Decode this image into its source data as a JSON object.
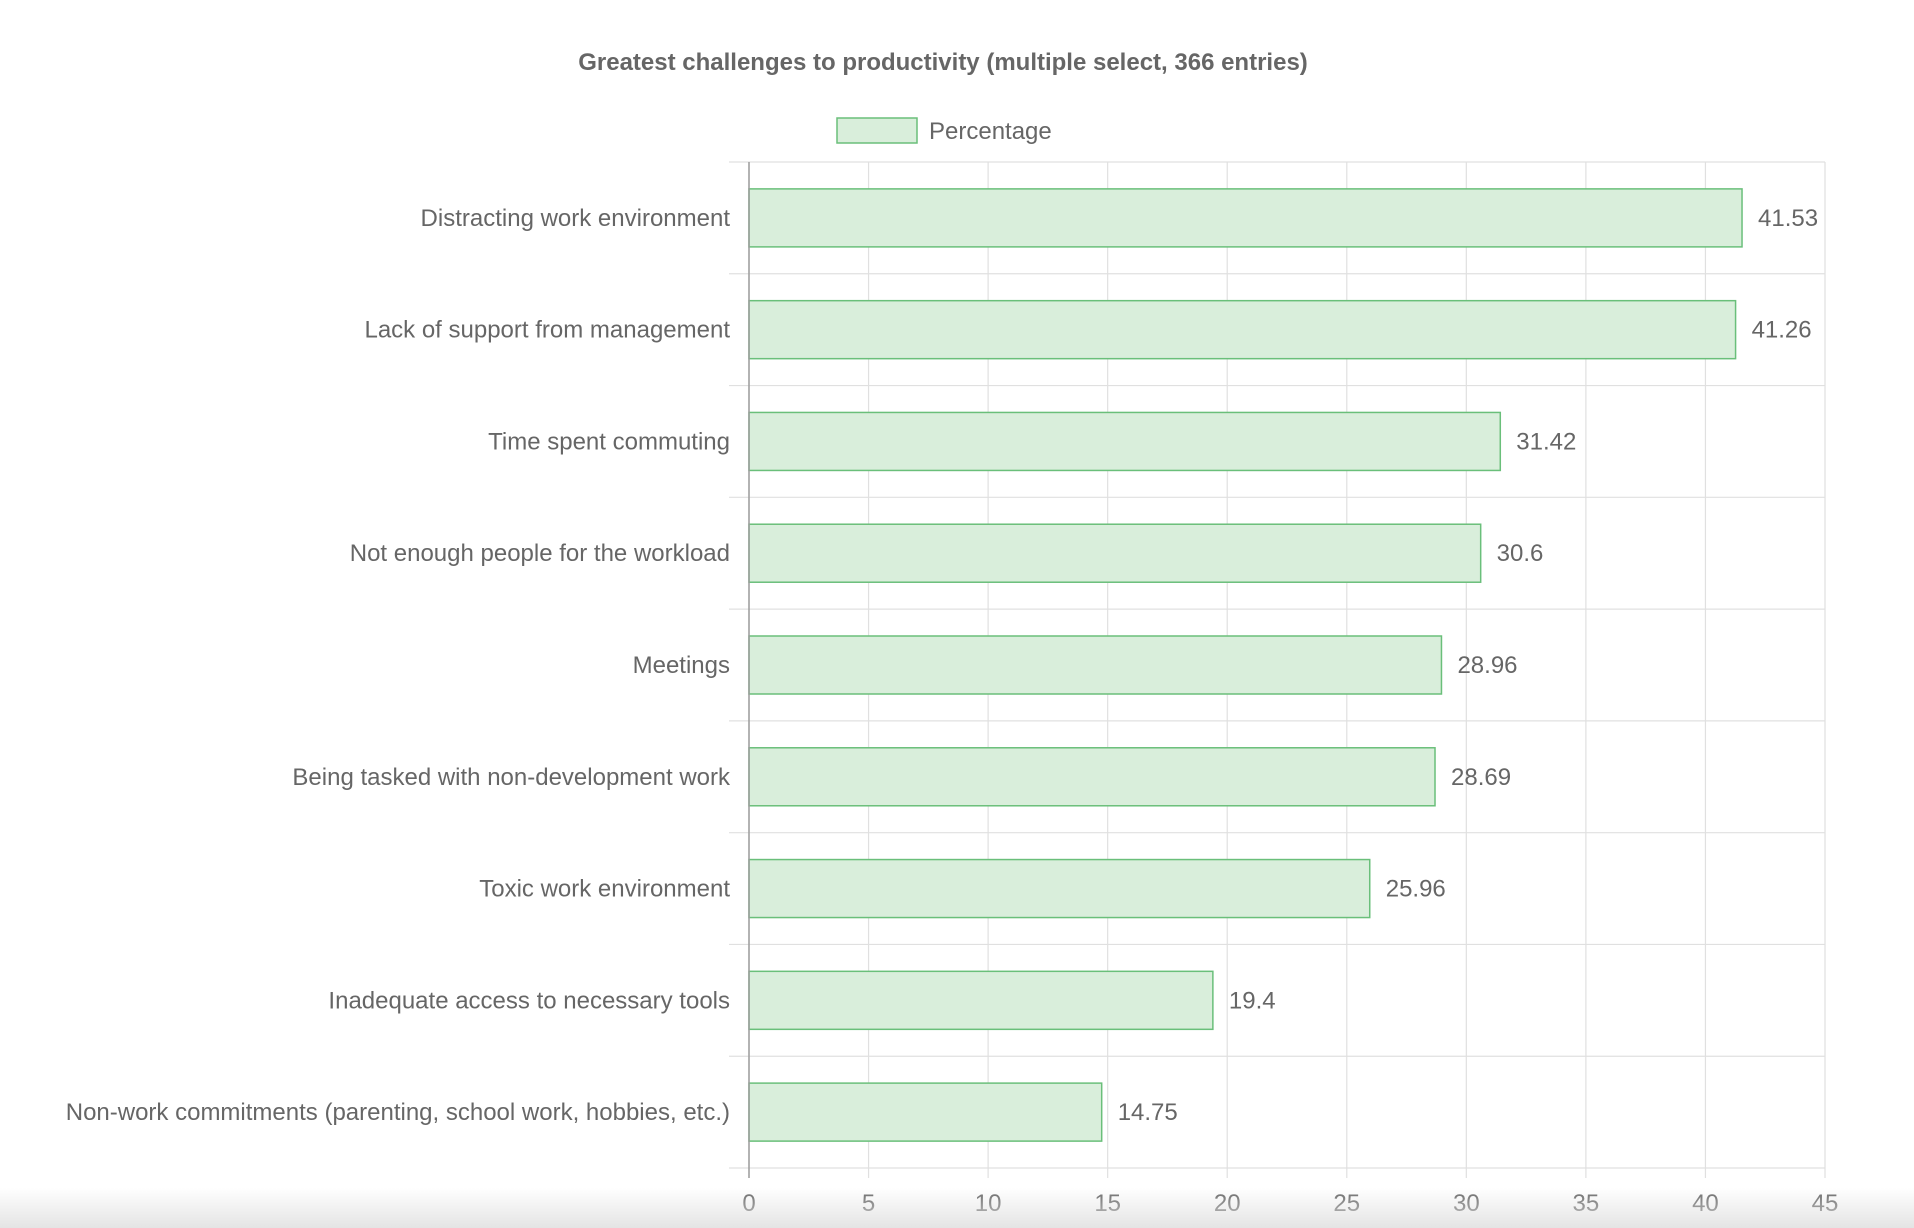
{
  "chart_data": {
    "type": "bar",
    "orientation": "horizontal",
    "title": "Greatest challenges to productivity (multiple select, 366 entries)",
    "categories": [
      "Distracting work environment",
      "Lack of support from management",
      "Time spent commuting",
      "Not enough people for the workload",
      "Meetings",
      "Being tasked with non-development work",
      "Toxic work environment",
      "Inadequate access to necessary tools",
      "Non-work commitments (parenting, school work, hobbies, etc.)"
    ],
    "series": [
      {
        "name": "Percentage",
        "values": [
          41.53,
          41.26,
          31.42,
          30.6,
          28.96,
          28.69,
          25.96,
          19.4,
          14.75
        ],
        "fill_color": "#d9eedb",
        "stroke_color": "#6abf7a"
      }
    ],
    "xlim": [
      0,
      45
    ],
    "xticks": [
      0,
      5,
      10,
      15,
      20,
      25,
      30,
      35,
      40,
      45
    ],
    "data_labels": [
      "41.53",
      "41.26",
      "31.42",
      "30.6",
      "28.96",
      "28.69",
      "25.96",
      "19.4",
      "14.75"
    ],
    "legend_position": "top",
    "grid": true,
    "colors": {
      "text": "#666666",
      "grid": "#e0e0e0",
      "axis": "#9c9c9c"
    }
  }
}
